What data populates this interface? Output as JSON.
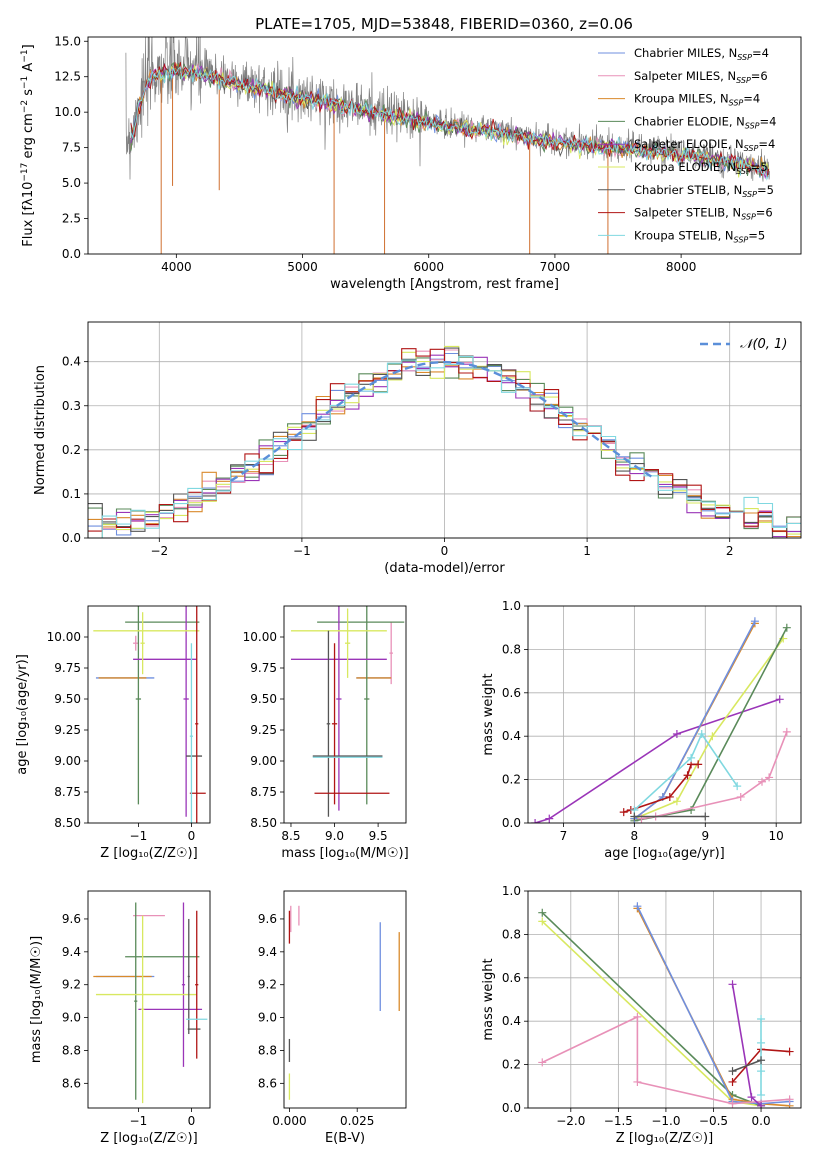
{
  "figure": {
    "title": "PLATE=1705, MJD=53848, FIBERID=0360, z=0.06"
  },
  "colors": {
    "axes": "#000000",
    "grid": "#b0b0b0",
    "data_spectrum": "#808080",
    "models": {
      "chabrier_miles": "#6f8fdf",
      "salpeter_miles": "#e891b8",
      "kroupa_miles": "#d98a2c",
      "chabrier_elodie": "#5a8a5a",
      "salpeter_elodie": "#9a35b8",
      "kroupa_elodie": "#d8e860",
      "chabrier_stelib": "#555555",
      "salpeter_stelib": "#b01515",
      "kroupa_stelib": "#80d8e0"
    },
    "normal_curve": "#5b8fd9"
  },
  "chart_data": [
    {
      "id": "spectrum",
      "type": "line",
      "title": "PLATE=1705, MJD=53848, FIBERID=0360, z=0.06",
      "xlabel": "wavelength [Angstrom, rest frame]",
      "ylabel": "Flux [f_λ 10^-17 erg cm^-2 s^-1 A^-1]",
      "xlim": [
        3300,
        8950
      ],
      "ylim": [
        0,
        15.3
      ],
      "xticks": [
        4000,
        5000,
        6000,
        7000,
        8000
      ],
      "yticks": [
        0.0,
        2.5,
        5.0,
        7.5,
        10.0,
        12.5,
        15.0
      ],
      "ytick_labels": [
        "0.0",
        "2.5",
        "5.0",
        "7.5",
        "10.0",
        "12.5",
        "15.0"
      ],
      "legend_position": "top-right",
      "legend": [
        {
          "label": "Chabrier MILES, N",
          "sub": "SSP",
          "suffix": "=4",
          "color_key": "chabrier_miles"
        },
        {
          "label": "Salpeter MILES, N",
          "sub": "SSP",
          "suffix": "=6",
          "color_key": "salpeter_miles"
        },
        {
          "label": "Kroupa MILES, N",
          "sub": "SSP",
          "suffix": "=4",
          "color_key": "kroupa_miles"
        },
        {
          "label": "Chabrier ELODIE, N",
          "sub": "SSP",
          "suffix": "=4",
          "color_key": "chabrier_elodie"
        },
        {
          "label": "Salpeter ELODIE, N",
          "sub": "SSP",
          "suffix": "=4",
          "color_key": "salpeter_elodie"
        },
        {
          "label": "Kroupa ELODIE, N",
          "sub": "SSP",
          "suffix": "=5",
          "color_key": "kroupa_elodie"
        },
        {
          "label": "Chabrier STELIB, N",
          "sub": "SSP",
          "suffix": "=5",
          "color_key": "chabrier_stelib"
        },
        {
          "label": "Salpeter STELIB, N",
          "sub": "SSP",
          "suffix": "=6",
          "color_key": "salpeter_stelib"
        },
        {
          "label": "Kroupa STELIB, N",
          "sub": "SSP",
          "suffix": "=5",
          "color_key": "kroupa_stelib"
        }
      ],
      "continuum_wavelength": [
        3600,
        3650,
        3700,
        3800,
        3900,
        4000,
        4200,
        4500,
        5000,
        5500,
        6000,
        6500,
        7000,
        7500,
        8000,
        8500,
        8700
      ],
      "continuum_flux": [
        8.2,
        8.5,
        10.5,
        12.8,
        13.0,
        13.2,
        12.9,
        12.2,
        11.2,
        10.3,
        9.4,
        8.8,
        8.0,
        7.6,
        7.2,
        6.4,
        6.0
      ],
      "absorption_features": [
        {
          "x": 3880,
          "y_min": 0.0
        },
        {
          "x": 3970,
          "y_min": 4.8
        },
        {
          "x": 4340,
          "y_min": 4.5
        },
        {
          "x": 5250,
          "y_min": 0.0
        },
        {
          "x": 5650,
          "y_min": 0.0
        },
        {
          "x": 6800,
          "y_min": 0.0
        },
        {
          "x": 7420,
          "y_min": 0.0
        }
      ]
    },
    {
      "id": "residuals",
      "type": "histogram",
      "xlabel": "(data-model)/error",
      "ylabel": "Normed distribution",
      "xlim": [
        -2.5,
        2.5
      ],
      "ylim": [
        0,
        0.49
      ],
      "xticks": [
        -2,
        -1,
        0,
        1,
        2
      ],
      "xtick_labels": [
        "−2",
        "−1",
        "0",
        "1",
        "2"
      ],
      "yticks": [
        0.0,
        0.1,
        0.2,
        0.3,
        0.4
      ],
      "ytick_labels": [
        "0.0",
        "0.1",
        "0.2",
        "0.3",
        "0.4"
      ],
      "grid": true,
      "legend_position": "top-right",
      "normal_label": "𝒩(0, 1)",
      "bin_width": 0.1
    },
    {
      "id": "age_vs_Z",
      "type": "errorbar",
      "xlabel": "Z [log₁₀(Z/Z☉)]",
      "ylabel": "age  [log₁₀(age/yr)]",
      "xlim": [
        -1.95,
        0.35
      ],
      "ylim": [
        8.5,
        10.25
      ],
      "xticks": [
        -1,
        0
      ],
      "xtick_labels": [
        "−1",
        "0"
      ],
      "yticks": [
        8.5,
        8.75,
        9.0,
        9.25,
        9.5,
        9.75,
        10.0
      ],
      "ytick_labels": [
        "8.50",
        "8.75",
        "9.00",
        "9.25",
        "9.50",
        "9.75",
        "10.00"
      ],
      "points": [
        {
          "m": "chabrier_miles",
          "x": -1.25,
          "y": 9.67,
          "xe": 0.55,
          "ye": 0
        },
        {
          "m": "salpeter_miles",
          "x": -1.05,
          "y": 9.95,
          "xe": 0.05,
          "ye": 0.06
        },
        {
          "m": "kroupa_miles",
          "x": -1.3,
          "y": 9.67,
          "xe": 0.45,
          "ye": 0
        },
        {
          "m": "chabrier_elodie",
          "x": -0.55,
          "y": 10.12,
          "xe": 0.7,
          "ye": 0
        },
        {
          "m": "chabrier_elodie",
          "x": -1.0,
          "y": 9.5,
          "xe": 0.05,
          "ye": 0.85
        },
        {
          "m": "salpeter_elodie",
          "x": -0.5,
          "y": 9.82,
          "xe": 0.6,
          "ye": 0
        },
        {
          "m": "salpeter_elodie",
          "x": -0.1,
          "y": 9.5,
          "xe": 0.05,
          "ye": 0.95
        },
        {
          "m": "kroupa_elodie",
          "x": -0.85,
          "y": 10.05,
          "xe": 1.0,
          "ye": 0
        },
        {
          "m": "kroupa_elodie",
          "x": -0.92,
          "y": 9.95,
          "xe": 0.04,
          "ye": 0.25
        },
        {
          "m": "chabrier_stelib",
          "x": 0.05,
          "y": 9.04,
          "xe": 0.15,
          "ye": 0
        },
        {
          "m": "salpeter_stelib",
          "x": 0.12,
          "y": 8.74,
          "xe": 0.15,
          "ye": 0
        },
        {
          "m": "salpeter_stelib",
          "x": 0.1,
          "y": 9.3,
          "xe": 0.03,
          "ye": 0.95
        },
        {
          "m": "kroupa_stelib",
          "x": 0.0,
          "y": 9.2,
          "xe": 0.03,
          "ye": 0.75
        }
      ]
    },
    {
      "id": "age_vs_mass",
      "type": "errorbar",
      "xlabel": "mass [log₁₀(M/M☉)]",
      "ylabel": "",
      "xlim": [
        8.42,
        9.82
      ],
      "ylim": [
        8.5,
        10.25
      ],
      "xticks": [
        8.5,
        9.0,
        9.5
      ],
      "xtick_labels": [
        "8.5",
        "9.0",
        "9.5"
      ],
      "yticks": [
        8.5,
        8.75,
        9.0,
        9.25,
        9.5,
        9.75,
        10.0
      ],
      "ytick_labels": [
        "8.50",
        "8.75",
        "9.00",
        "9.25",
        "9.50",
        "9.75",
        "10.00"
      ],
      "points": [
        {
          "m": "chabrier_miles",
          "x": 9.45,
          "y": 9.67,
          "xe": 0.2,
          "ye": 0
        },
        {
          "m": "salpeter_miles",
          "x": 9.65,
          "y": 9.87,
          "xe": 0.02,
          "ye": 0.25
        },
        {
          "m": "kroupa_miles",
          "x": 9.45,
          "y": 9.67,
          "xe": 0.2,
          "ye": 0
        },
        {
          "m": "chabrier_elodie",
          "x": 9.3,
          "y": 10.12,
          "xe": 0.5,
          "ye": 0
        },
        {
          "m": "chabrier_elodie",
          "x": 9.37,
          "y": 9.5,
          "xe": 0.03,
          "ye": 0.85
        },
        {
          "m": "salpeter_elodie",
          "x": 9.05,
          "y": 9.82,
          "xe": 0.55,
          "ye": 0
        },
        {
          "m": "salpeter_elodie",
          "x": 9.05,
          "y": 9.5,
          "xe": 0.03,
          "ye": 0.9
        },
        {
          "m": "kroupa_elodie",
          "x": 9.05,
          "y": 10.05,
          "xe": 0.55,
          "ye": 0
        },
        {
          "m": "kroupa_elodie",
          "x": 9.15,
          "y": 9.95,
          "xe": 0.03,
          "ye": 0.28
        },
        {
          "m": "chabrier_stelib",
          "x": 9.15,
          "y": 9.04,
          "xe": 0.4,
          "ye": 0
        },
        {
          "m": "chabrier_stelib",
          "x": 8.93,
          "y": 9.3,
          "xe": 0.02,
          "ye": 0.75
        },
        {
          "m": "salpeter_stelib",
          "x": 9.2,
          "y": 8.74,
          "xe": 0.43,
          "ye": 0
        },
        {
          "m": "salpeter_stelib",
          "x": 9.0,
          "y": 9.3,
          "xe": 0.03,
          "ye": 0.65
        },
        {
          "m": "kroupa_stelib",
          "x": 9.15,
          "y": 9.03,
          "xe": 0.4,
          "ye": 0
        }
      ]
    },
    {
      "id": "weight_vs_age",
      "type": "line",
      "xlabel": "age  [log₁₀(age/yr)]",
      "ylabel": "mass weight",
      "xlim": [
        6.5,
        10.35
      ],
      "ylim": [
        0,
        1.0
      ],
      "xticks": [
        7,
        8,
        9,
        10
      ],
      "xtick_labels": [
        "7",
        "8",
        "9",
        "10"
      ],
      "yticks": [
        0.0,
        0.2,
        0.4,
        0.6,
        0.8,
        1.0
      ],
      "ytick_labels": [
        "0.0",
        "0.2",
        "0.4",
        "0.6",
        "0.8",
        "1.0"
      ],
      "grid": true,
      "series": [
        {
          "m": "salpeter_elodie",
          "x": [
            6.6,
            6.8,
            8.6,
            10.05
          ],
          "y": [
            0.0,
            0.02,
            0.41,
            0.57
          ]
        },
        {
          "m": "kroupa_elodie",
          "x": [
            8.0,
            8.6,
            9.1,
            10.1
          ],
          "y": [
            0.02,
            0.1,
            0.4,
            0.85
          ]
        },
        {
          "m": "chabrier_elodie",
          "x": [
            8.0,
            8.8,
            10.15
          ],
          "y": [
            0.01,
            0.06,
            0.9
          ]
        },
        {
          "m": "kroupa_miles",
          "x": [
            8.0,
            8.4,
            9.7
          ],
          "y": [
            0.02,
            0.12,
            0.92
          ]
        },
        {
          "m": "chabrier_miles",
          "x": [
            8.0,
            8.4,
            9.7
          ],
          "y": [
            0.02,
            0.12,
            0.93
          ]
        },
        {
          "m": "salpeter_miles",
          "x": [
            8.1,
            8.3,
            9.5,
            9.8,
            9.9,
            10.15
          ],
          "y": [
            0.02,
            0.03,
            0.12,
            0.19,
            0.21,
            0.42
          ]
        },
        {
          "m": "salpeter_stelib",
          "x": [
            7.85,
            7.95,
            8.5,
            8.75,
            8.8,
            8.9
          ],
          "y": [
            0.05,
            0.06,
            0.12,
            0.22,
            0.27,
            0.27
          ]
        },
        {
          "m": "kroupa_stelib",
          "x": [
            8.0,
            8.8,
            8.95,
            9.45
          ],
          "y": [
            0.06,
            0.3,
            0.41,
            0.17
          ]
        },
        {
          "m": "chabrier_stelib",
          "x": [
            8.0,
            9.0
          ],
          "y": [
            0.03,
            0.03
          ]
        }
      ]
    },
    {
      "id": "mass_vs_Z",
      "type": "errorbar",
      "xlabel": "Z [log₁₀(Z/Z☉)]",
      "ylabel": "mass [log₁₀(M/M☉)]",
      "xlim": [
        -1.95,
        0.35
      ],
      "ylim": [
        8.45,
        9.77
      ],
      "xticks": [
        -1,
        0
      ],
      "xtick_labels": [
        "−1",
        "0"
      ],
      "yticks": [
        8.6,
        8.8,
        9.0,
        9.2,
        9.4,
        9.6
      ],
      "ytick_labels": [
        "8.6",
        "8.8",
        "9.0",
        "9.2",
        "9.4",
        "9.6"
      ],
      "points": [
        {
          "m": "chabrier_miles",
          "x": -1.25,
          "y": 9.25,
          "xe": 0.55,
          "ye": 0
        },
        {
          "m": "salpeter_miles",
          "x": -0.8,
          "y": 9.62,
          "xe": 0.3,
          "ye": 0
        },
        {
          "m": "kroupa_miles",
          "x": -1.3,
          "y": 9.25,
          "xe": 0.55,
          "ye": 0
        },
        {
          "m": "chabrier_elodie",
          "x": -0.55,
          "y": 9.37,
          "xe": 0.7,
          "ye": 0
        },
        {
          "m": "chabrier_elodie",
          "x": -1.05,
          "y": 9.1,
          "xe": 0.03,
          "ye": 0.6
        },
        {
          "m": "salpeter_elodie",
          "x": -0.4,
          "y": 9.05,
          "xe": 0.6,
          "ye": 0
        },
        {
          "m": "salpeter_elodie",
          "x": -0.15,
          "y": 9.2,
          "xe": 0.03,
          "ye": 0.5
        },
        {
          "m": "kroupa_elodie",
          "x": -0.85,
          "y": 9.14,
          "xe": 0.95,
          "ye": 0
        },
        {
          "m": "kroupa_elodie",
          "x": -0.92,
          "y": 9.05,
          "xe": 0.03,
          "ye": 0.57
        },
        {
          "m": "chabrier_stelib",
          "x": 0.05,
          "y": 8.93,
          "xe": 0.12,
          "ye": 0
        },
        {
          "m": "chabrier_stelib",
          "x": -0.05,
          "y": 9.25,
          "xe": 0.02,
          "ye": 0.35
        },
        {
          "m": "salpeter_stelib",
          "x": 0.1,
          "y": 9.2,
          "xe": 0.03,
          "ye": 0.45
        },
        {
          "m": "kroupa_stelib",
          "x": 0.1,
          "y": 8.99,
          "xe": 0.2,
          "ye": 0
        }
      ]
    },
    {
      "id": "mass_vs_ebv",
      "type": "errorbar",
      "xlabel": "E(B-V)",
      "ylabel": "",
      "xlim": [
        -0.002,
        0.043
      ],
      "ylim": [
        8.45,
        9.77
      ],
      "xticks": [
        0.0,
        0.025
      ],
      "xtick_labels": [
        "0.000",
        "0.025"
      ],
      "yticks": [
        8.6,
        8.8,
        9.0,
        9.2,
        9.4,
        9.6
      ],
      "ytick_labels": [
        "8.6",
        "8.8",
        "9.0",
        "9.2",
        "9.4",
        "9.6"
      ],
      "points": [
        {
          "m": "chabrier_miles",
          "x": 0.0335,
          "y": 9.31,
          "xe": 0,
          "ye": 0.27
        },
        {
          "m": "kroupa_miles",
          "x": 0.0405,
          "y": 9.28,
          "xe": 0,
          "ye": 0.24
        },
        {
          "m": "salpeter_miles",
          "x": 0.0035,
          "y": 9.62,
          "xe": 0,
          "ye": 0.06
        },
        {
          "m": "salpeter_miles",
          "x": 0.0005,
          "y": 9.6,
          "xe": 0,
          "ye": 0.08
        },
        {
          "m": "salpeter_stelib",
          "x": 0.0,
          "y": 9.55,
          "xe": 0,
          "ye": 0.1
        },
        {
          "m": "chabrier_stelib",
          "x": 0.0,
          "y": 8.8,
          "xe": 0,
          "ye": 0.07
        },
        {
          "m": "kroupa_elodie",
          "x": 0.0,
          "y": 8.58,
          "xe": 0,
          "ye": 0.08
        }
      ]
    },
    {
      "id": "weight_vs_Z",
      "type": "line",
      "xlabel": "Z [log₁₀(Z/Z☉)]",
      "ylabel": "mass weight",
      "xlim": [
        -2.45,
        0.42
      ],
      "ylim": [
        0,
        1.0
      ],
      "xticks": [
        -2.0,
        -1.5,
        -1.0,
        -0.5,
        0.0
      ],
      "xtick_labels": [
        "−2.0",
        "−1.5",
        "−1.0",
        "−0.5",
        "0.0"
      ],
      "yticks": [
        0.0,
        0.2,
        0.4,
        0.6,
        0.8,
        1.0
      ],
      "ytick_labels": [
        "0.0",
        "0.2",
        "0.4",
        "0.6",
        "0.8",
        "1.0"
      ],
      "grid": true,
      "series": [
        {
          "m": "kroupa_elodie",
          "x": [
            -2.3,
            -0.3,
            0.0
          ],
          "y": [
            0.86,
            0.03,
            0.01
          ]
        },
        {
          "m": "chabrier_elodie",
          "x": [
            -2.3,
            -0.3,
            0.0
          ],
          "y": [
            0.9,
            0.06,
            0.01
          ]
        },
        {
          "m": "kroupa_miles",
          "x": [
            -1.3,
            -0.3,
            0.0,
            0.3
          ],
          "y": [
            0.92,
            0.04,
            0.02,
            0.01
          ]
        },
        {
          "m": "chabrier_miles",
          "x": [
            -1.3,
            -0.3,
            0.0,
            0.3
          ],
          "y": [
            0.93,
            0.03,
            0.02,
            0.03
          ]
        },
        {
          "m": "salpeter_miles",
          "x": [
            -2.3,
            -1.3,
            -1.3,
            -0.3,
            0.3
          ],
          "y": [
            0.21,
            0.42,
            0.12,
            0.02,
            0.04
          ]
        },
        {
          "m": "salpeter_elodie",
          "x": [
            -0.3,
            -0.1,
            0.0
          ],
          "y": [
            0.57,
            0.05,
            0.01
          ]
        },
        {
          "m": "salpeter_stelib",
          "x": [
            -0.3,
            0.0,
            0.3
          ],
          "y": [
            0.12,
            0.27,
            0.26
          ]
        },
        {
          "m": "kroupa_stelib",
          "x": [
            0.0,
            0.0,
            0.0,
            0.0
          ],
          "y": [
            0.41,
            0.3,
            0.17,
            0.06
          ]
        },
        {
          "m": "chabrier_stelib",
          "x": [
            -0.3,
            0.0
          ],
          "y": [
            0.17,
            0.22
          ]
        }
      ]
    }
  ]
}
